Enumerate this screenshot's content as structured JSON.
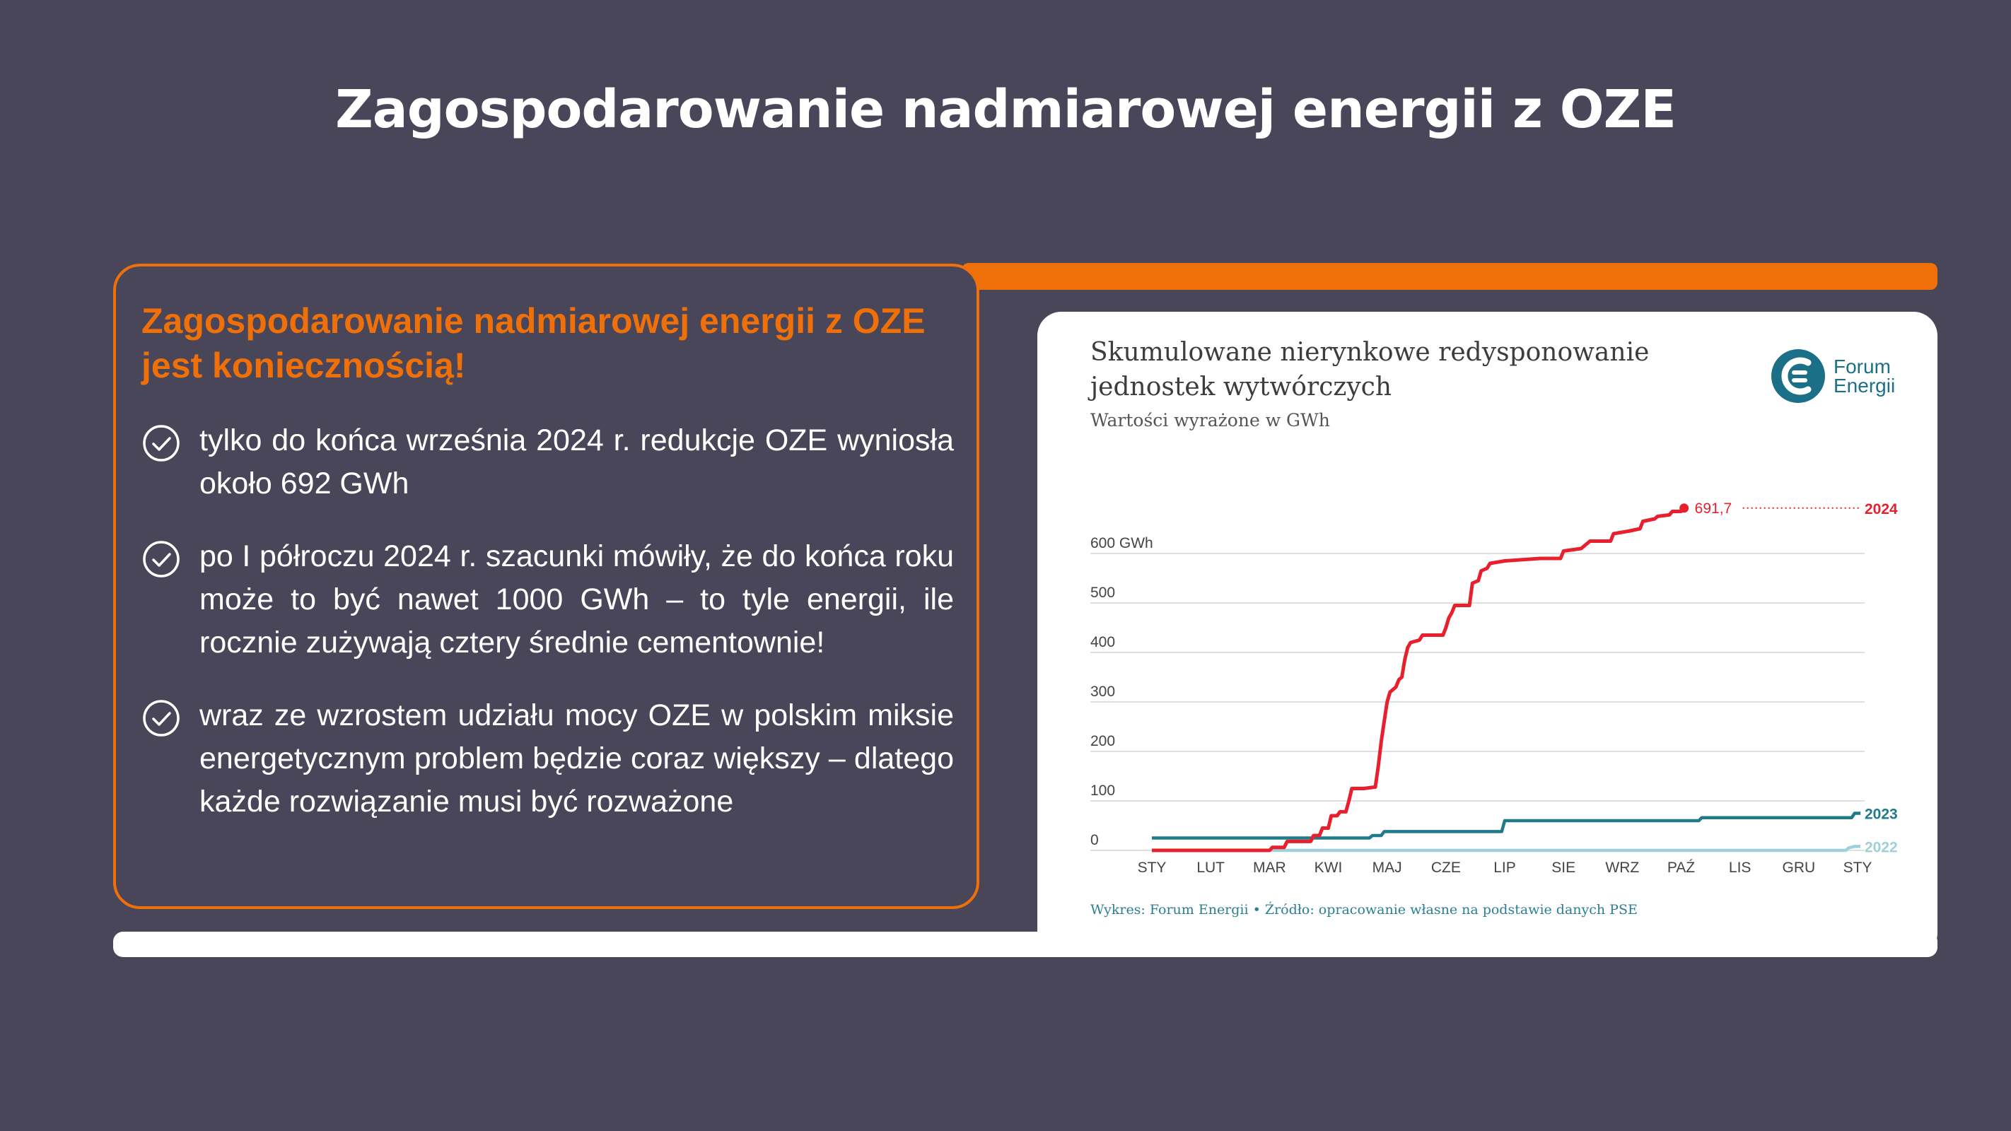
{
  "slide": {
    "title": "Zagospodarowanie nadmiarowej energii z OZE"
  },
  "card": {
    "heading": "Zagospodarowanie nadmiarowej energii z OZE jest koniecznością!",
    "bullets": [
      "tylko do końca września 2024 r. redukcje OZE wyniosła około 692 GWh",
      "po I półroczu 2024 r. szacunki mówiły, że do końca roku może to być nawet 1000 GWh – to tyle energii, ile rocznie zużywają cztery średnie cementownie!",
      "wraz ze wzrostem udziału mocy OZE w polskim miksie energetycznym problem będzie coraz większy – dlatego każde rozwiązanie musi być rozważone"
    ]
  },
  "colors": {
    "background": "#4a4659",
    "accent": "#ef7009",
    "series_2024": "#e8202e",
    "series_2023": "#1f7a8c",
    "series_2022": "#9fd0d9"
  },
  "brand": {
    "name_line1": "Forum",
    "name_line2": "Energii",
    "icon": "forum-energii-logo-icon"
  },
  "chart_data": {
    "type": "line",
    "title": "Skumulowane nierynkowe redysponowanie jednostek wytwórczych",
    "title_line1": "Skumulowane nierynkowe redysponowanie",
    "title_line2": "jednostek wytwórczych",
    "subtitle": "Wartości wyrażone w GWh",
    "source": "Wykres: Forum Energii • Źródło: opracowanie własne na podstawie danych PSE",
    "x_labels": [
      "STY",
      "LUT",
      "MAR",
      "KWI",
      "MAJ",
      "CZE",
      "LIP",
      "SIE",
      "WRZ",
      "PAŹ",
      "LIS",
      "GRU",
      "STY"
    ],
    "y_ticks": [
      {
        "value": 0,
        "label": "0"
      },
      {
        "value": 100,
        "label": "100"
      },
      {
        "value": 200,
        "label": "200"
      },
      {
        "value": 300,
        "label": "300"
      },
      {
        "value": 400,
        "label": "400"
      },
      {
        "value": 500,
        "label": "500"
      },
      {
        "value": 600,
        "label": "600 GWh"
      }
    ],
    "ylim": [
      0,
      700
    ],
    "xlim": [
      0,
      12
    ],
    "grid": true,
    "end_annotation": {
      "label": "691,7",
      "value": 691.7,
      "series": "2024"
    },
    "series": [
      {
        "name": "2024",
        "color": "#e8202e",
        "points": [
          [
            0,
            0
          ],
          [
            2.0,
            0
          ],
          [
            2.05,
            6
          ],
          [
            2.25,
            6
          ],
          [
            2.3,
            18
          ],
          [
            2.7,
            18
          ],
          [
            2.75,
            30
          ],
          [
            2.85,
            30
          ],
          [
            2.9,
            45
          ],
          [
            3.0,
            45
          ],
          [
            3.05,
            70
          ],
          [
            3.15,
            70
          ],
          [
            3.2,
            78
          ],
          [
            3.3,
            78
          ],
          [
            3.35,
            100
          ],
          [
            3.4,
            125
          ],
          [
            3.6,
            125
          ],
          [
            3.8,
            128
          ],
          [
            3.85,
            170
          ],
          [
            3.9,
            220
          ],
          [
            3.95,
            260
          ],
          [
            4.0,
            300
          ],
          [
            4.05,
            320
          ],
          [
            4.15,
            330
          ],
          [
            4.2,
            345
          ],
          [
            4.25,
            350
          ],
          [
            4.3,
            385
          ],
          [
            4.35,
            410
          ],
          [
            4.4,
            420
          ],
          [
            4.55,
            425
          ],
          [
            4.6,
            435
          ],
          [
            4.95,
            435
          ],
          [
            5.0,
            450
          ],
          [
            5.05,
            470
          ],
          [
            5.1,
            480
          ],
          [
            5.15,
            495
          ],
          [
            5.4,
            495
          ],
          [
            5.45,
            540
          ],
          [
            5.55,
            545
          ],
          [
            5.6,
            565
          ],
          [
            5.7,
            570
          ],
          [
            5.75,
            580
          ],
          [
            6.0,
            585
          ],
          [
            6.6,
            590
          ],
          [
            6.95,
            590
          ],
          [
            7.0,
            605
          ],
          [
            7.3,
            610
          ],
          [
            7.45,
            625
          ],
          [
            7.6,
            625
          ],
          [
            7.8,
            625
          ],
          [
            7.85,
            640
          ],
          [
            8.1,
            645
          ],
          [
            8.3,
            650
          ],
          [
            8.35,
            665
          ],
          [
            8.55,
            670
          ],
          [
            8.6,
            675
          ],
          [
            8.8,
            678
          ],
          [
            8.85,
            685
          ],
          [
            9.0,
            685
          ],
          [
            9.05,
            691.7
          ]
        ]
      },
      {
        "name": "2023",
        "color": "#1f7a8c",
        "points": [
          [
            0,
            25
          ],
          [
            3.7,
            25
          ],
          [
            3.75,
            30
          ],
          [
            3.9,
            30
          ],
          [
            3.95,
            38
          ],
          [
            5.95,
            38
          ],
          [
            6.0,
            60
          ],
          [
            9.3,
            60
          ],
          [
            9.35,
            66
          ],
          [
            11.9,
            66
          ],
          [
            11.95,
            75
          ],
          [
            12.05,
            75
          ]
        ]
      },
      {
        "name": "2022",
        "color": "#9fd0d9",
        "points": [
          [
            0,
            0
          ],
          [
            11.8,
            0
          ],
          [
            11.85,
            5
          ],
          [
            11.95,
            8
          ],
          [
            12.05,
            8
          ]
        ]
      }
    ]
  }
}
